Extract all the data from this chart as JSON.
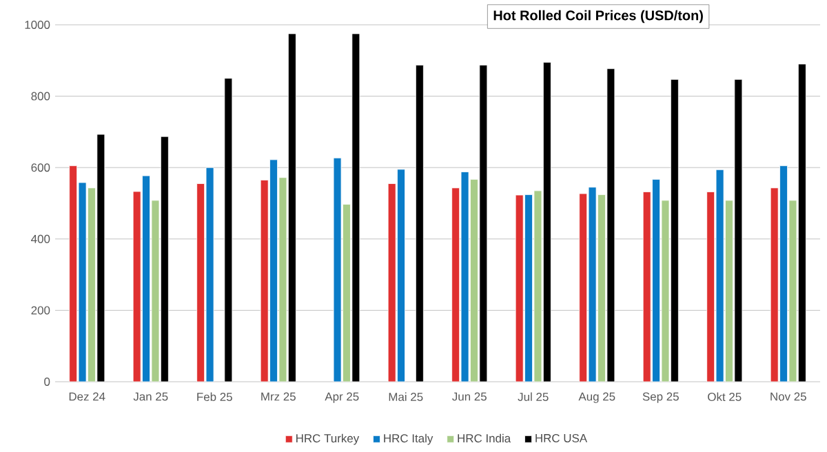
{
  "chart_data": {
    "type": "bar",
    "title": "Hot Rolled Coil Prices (USD/ton)",
    "categories": [
      "Dez 24",
      "Jan 25",
      "Feb 25",
      "Mrz 25",
      "Apr 25",
      "Mai 25",
      "Jun 25",
      "Jul 25",
      "Aug 25",
      "Sep 25",
      "Okt 25",
      "Nov 25"
    ],
    "series": [
      {
        "name": "HRC Turkey",
        "color": "#e03030",
        "values": [
          605,
          533,
          555,
          565,
          null,
          555,
          543,
          523,
          527,
          532,
          532,
          543
        ]
      },
      {
        "name": "HRC Italy",
        "color": "#0a7cc8",
        "values": [
          558,
          577,
          600,
          622,
          627,
          595,
          588,
          524,
          545,
          567,
          594,
          605
        ]
      },
      {
        "name": "HRC India",
        "color": "#a8cc88",
        "values": [
          543,
          508,
          null,
          572,
          497,
          null,
          567,
          535,
          524,
          508,
          508,
          508
        ]
      },
      {
        "name": "HRC USA",
        "color": "#000000",
        "values": [
          693,
          687,
          850,
          975,
          975,
          887,
          887,
          895,
          877,
          847,
          847,
          890
        ]
      }
    ],
    "ylim": [
      0,
      1000
    ],
    "yticks": [
      0,
      200,
      400,
      600,
      800,
      1000
    ],
    "grid": "y",
    "legend": "bottom"
  }
}
